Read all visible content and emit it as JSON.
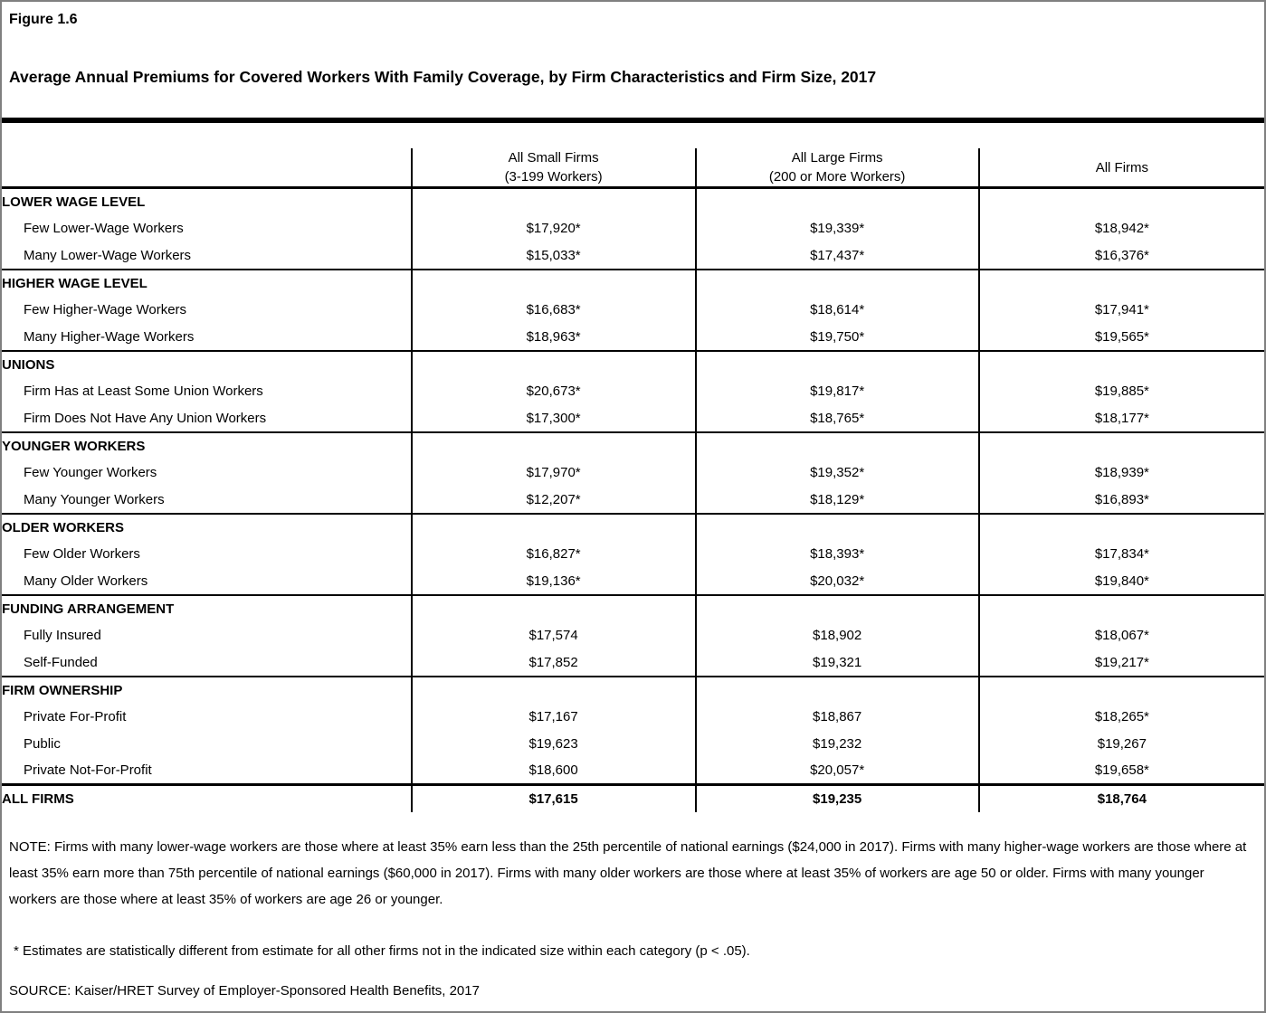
{
  "figure_label": "Figure 1.6",
  "title": "Average Annual Premiums for Covered Workers With Family Coverage, by Firm Characteristics and Firm Size, 2017",
  "table": {
    "columns": [
      {
        "line1": "All Small Firms",
        "line2": "(3-199 Workers)"
      },
      {
        "line1": "All Large Firms",
        "line2": "(200 or More Workers)"
      },
      {
        "line1": "All Firms",
        "line2": ""
      }
    ],
    "sections": [
      {
        "category": "LOWER WAGE LEVEL",
        "rows": [
          {
            "label": "Few Lower-Wage Workers",
            "values": [
              "$17,920*",
              "$19,339*",
              "$18,942*"
            ]
          },
          {
            "label": "Many Lower-Wage Workers",
            "values": [
              "$15,033*",
              "$17,437*",
              "$16,376*"
            ]
          }
        ]
      },
      {
        "category": "HIGHER WAGE LEVEL",
        "rows": [
          {
            "label": "Few Higher-Wage Workers",
            "values": [
              "$16,683*",
              "$18,614*",
              "$17,941*"
            ]
          },
          {
            "label": "Many Higher-Wage Workers",
            "values": [
              "$18,963*",
              "$19,750*",
              "$19,565*"
            ]
          }
        ]
      },
      {
        "category": "UNIONS",
        "rows": [
          {
            "label": "Firm Has at Least Some Union Workers",
            "values": [
              "$20,673*",
              "$19,817*",
              "$19,885*"
            ]
          },
          {
            "label": "Firm Does Not Have Any Union Workers",
            "values": [
              "$17,300*",
              "$18,765*",
              "$18,177*"
            ]
          }
        ]
      },
      {
        "category": "YOUNGER WORKERS",
        "rows": [
          {
            "label": "Few Younger Workers",
            "values": [
              "$17,970*",
              "$19,352*",
              "$18,939*"
            ]
          },
          {
            "label": "Many Younger Workers",
            "values": [
              "$12,207*",
              "$18,129*",
              "$16,893*"
            ]
          }
        ]
      },
      {
        "category": "OLDER WORKERS",
        "rows": [
          {
            "label": "Few Older Workers",
            "values": [
              "$16,827*",
              "$18,393*",
              "$17,834*"
            ]
          },
          {
            "label": "Many Older Workers",
            "values": [
              "$19,136*",
              "$20,032*",
              "$19,840*"
            ]
          }
        ]
      },
      {
        "category": "FUNDING ARRANGEMENT",
        "rows": [
          {
            "label": "Fully Insured",
            "values": [
              "$17,574",
              "$18,902",
              "$18,067*"
            ]
          },
          {
            "label": "Self-Funded",
            "values": [
              "$17,852",
              "$19,321",
              "$19,217*"
            ]
          }
        ]
      },
      {
        "category": "FIRM OWNERSHIP",
        "rows": [
          {
            "label": "Private For-Profit",
            "values": [
              "$17,167",
              "$18,867",
              "$18,265*"
            ]
          },
          {
            "label": "Public",
            "values": [
              "$19,623",
              "$19,232",
              "$19,267"
            ]
          },
          {
            "label": "Private Not-For-Profit",
            "values": [
              "$18,600",
              "$20,057*",
              "$19,658*"
            ]
          }
        ]
      }
    ],
    "total_row": {
      "label": "ALL FIRMS",
      "values": [
        "$17,615",
        "$19,235",
        "$18,764"
      ]
    }
  },
  "notes": {
    "note": "NOTE: Firms with many lower-wage workers are those where at least 35% earn less than the 25th percentile of national earnings ($24,000 in 2017). Firms with many higher-wage workers are those where at least 35% earn more than 75th percentile of national earnings ($60,000 in 2017). Firms with many older workers are those where at least 35% of workers are age 50 or older. Firms with many younger workers are those where at least 35% of workers are age 26 or younger.",
    "asterisk_note": "* Estimates are statistically different from estimate for all other firms not in the indicated size within each category (p < .05).",
    "source": "SOURCE: Kaiser/HRET Survey of Employer-Sponsored Health Benefits, 2017"
  }
}
